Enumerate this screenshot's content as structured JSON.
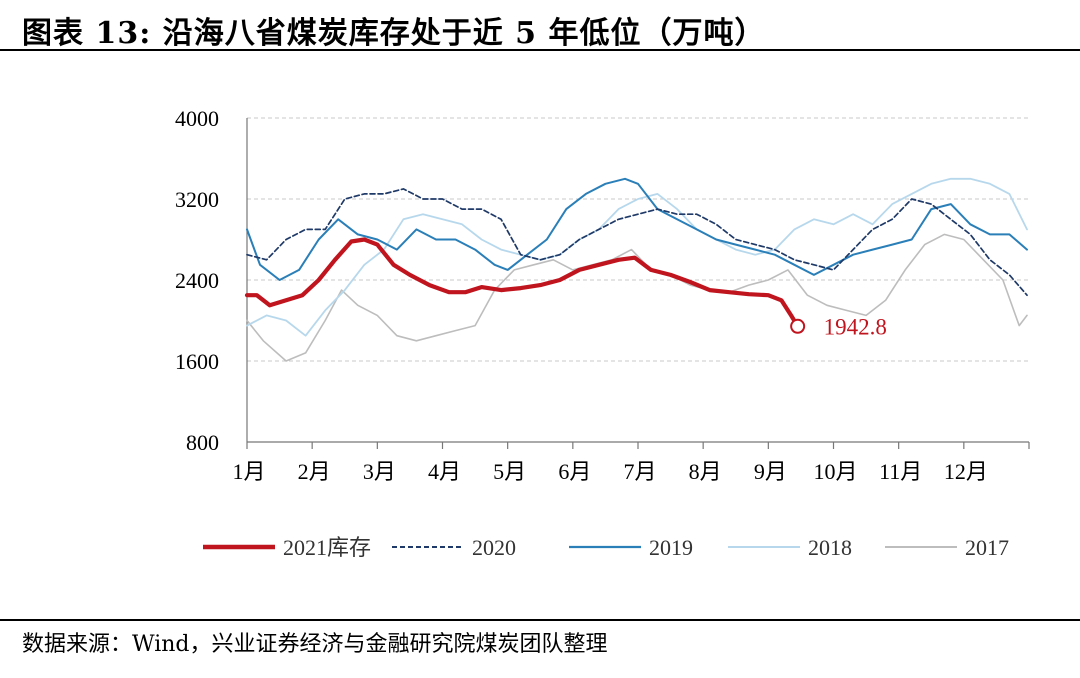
{
  "header": {
    "title": "图表 13:  沿海八省煤炭库存处于近 5 年低位（万吨）"
  },
  "footer": {
    "source": "数据来源：Wind，兴业证券经济与金融研究院煤炭团队整理"
  },
  "colors": {
    "y2021": "#c0141e",
    "y2020": "#1f3a68",
    "y2019": "#2a7fb8",
    "y2018": "#b7d8ec",
    "y2017": "#bdbdbd"
  },
  "chart_data": {
    "type": "line",
    "title": "",
    "xlabel": "",
    "ylabel": "",
    "ylim": [
      800,
      4000
    ],
    "yticks": [
      800,
      1600,
      2400,
      3200,
      4000
    ],
    "categories": [
      "1月",
      "2月",
      "3月",
      "4月",
      "5月",
      "6月",
      "7月",
      "8月",
      "9月",
      "10月",
      "11月",
      "12月"
    ],
    "grid": "horizontal-dashed",
    "legend_position": "bottom",
    "annotation": {
      "label": "1942.8",
      "month": 9.45,
      "value": 1942.8
    },
    "series": [
      {
        "name": "2017",
        "style": "solid",
        "x": [
          1.0,
          1.25,
          1.6,
          1.9,
          2.2,
          2.45,
          2.7,
          3.0,
          3.3,
          3.6,
          3.9,
          4.2,
          4.5,
          4.8,
          5.1,
          5.4,
          5.7,
          6.0,
          6.3,
          6.6,
          6.9,
          7.2,
          7.5,
          7.8,
          8.1,
          8.4,
          8.7,
          9.0,
          9.3,
          9.6,
          9.9,
          10.2,
          10.5,
          10.8,
          11.1,
          11.4,
          11.7,
          12.0,
          12.3,
          12.6,
          12.85,
          12.97
        ],
        "values": [
          2000,
          1800,
          1600,
          1680,
          2000,
          2300,
          2150,
          2050,
          1850,
          1800,
          1850,
          1900,
          1950,
          2300,
          2500,
          2550,
          2600,
          2500,
          2550,
          2600,
          2700,
          2500,
          2450,
          2350,
          2300,
          2280,
          2350,
          2400,
          2500,
          2250,
          2150,
          2100,
          2050,
          2200,
          2500,
          2750,
          2850,
          2800,
          2600,
          2400,
          1950,
          2050
        ]
      },
      {
        "name": "2018",
        "style": "solid",
        "x": [
          1.0,
          1.3,
          1.6,
          1.9,
          2.2,
          2.5,
          2.8,
          3.1,
          3.4,
          3.7,
          4.0,
          4.3,
          4.6,
          4.9,
          5.2,
          5.5,
          5.8,
          6.1,
          6.4,
          6.7,
          7.0,
          7.3,
          7.6,
          7.9,
          8.2,
          8.5,
          8.8,
          9.1,
          9.4,
          9.7,
          10.0,
          10.3,
          10.6,
          10.9,
          11.2,
          11.5,
          11.8,
          12.1,
          12.4,
          12.7,
          12.97
        ],
        "values": [
          1950,
          2050,
          2000,
          1850,
          2100,
          2300,
          2550,
          2700,
          3000,
          3050,
          3000,
          2950,
          2800,
          2700,
          2650,
          2600,
          2650,
          2800,
          2900,
          3100,
          3200,
          3250,
          3100,
          2900,
          2800,
          2700,
          2650,
          2700,
          2900,
          3000,
          2950,
          3050,
          2950,
          3150,
          3250,
          3350,
          3400,
          3400,
          3350,
          3250,
          2900
        ]
      },
      {
        "name": "2019",
        "style": "solid",
        "x": [
          1.0,
          1.2,
          1.5,
          1.8,
          2.1,
          2.4,
          2.7,
          3.0,
          3.3,
          3.6,
          3.9,
          4.2,
          4.5,
          4.8,
          5.0,
          5.3,
          5.6,
          5.9,
          6.2,
          6.5,
          6.8,
          7.0,
          7.3,
          7.6,
          7.9,
          8.2,
          8.5,
          8.8,
          9.1,
          9.4,
          9.7,
          10.0,
          10.3,
          10.6,
          10.9,
          11.2,
          11.5,
          11.8,
          12.1,
          12.4,
          12.7,
          12.97
        ],
        "values": [
          2900,
          2550,
          2400,
          2500,
          2800,
          3000,
          2850,
          2800,
          2700,
          2900,
          2800,
          2800,
          2700,
          2550,
          2500,
          2650,
          2800,
          3100,
          3250,
          3350,
          3400,
          3350,
          3100,
          3000,
          2900,
          2800,
          2750,
          2700,
          2650,
          2550,
          2450,
          2550,
          2650,
          2700,
          2750,
          2800,
          3100,
          3150,
          2950,
          2850,
          2850,
          2700
        ]
      },
      {
        "name": "2020",
        "style": "dashed",
        "x": [
          1.0,
          1.3,
          1.6,
          1.9,
          2.2,
          2.5,
          2.8,
          3.1,
          3.4,
          3.7,
          4.0,
          4.3,
          4.6,
          4.9,
          5.2,
          5.5,
          5.8,
          6.1,
          6.4,
          6.7,
          7.0,
          7.3,
          7.6,
          7.9,
          8.2,
          8.5,
          8.8,
          9.1,
          9.4,
          9.7,
          10.0,
          10.3,
          10.6,
          10.9,
          11.2,
          11.5,
          11.8,
          12.1,
          12.4,
          12.7,
          12.97
        ],
        "values": [
          2650,
          2600,
          2800,
          2900,
          2900,
          3200,
          3250,
          3250,
          3300,
          3200,
          3200,
          3100,
          3100,
          3000,
          2650,
          2600,
          2650,
          2800,
          2900,
          3000,
          3050,
          3100,
          3050,
          3050,
          2950,
          2800,
          2750,
          2700,
          2600,
          2550,
          2500,
          2700,
          2900,
          3000,
          3200,
          3150,
          3000,
          2850,
          2600,
          2450,
          2250
        ]
      },
      {
        "name": "2021库存",
        "style": "solid-thick",
        "x": [
          1.0,
          1.15,
          1.35,
          1.6,
          1.85,
          2.1,
          2.35,
          2.6,
          2.8,
          3.0,
          3.25,
          3.5,
          3.8,
          4.1,
          4.35,
          4.6,
          4.9,
          5.2,
          5.5,
          5.8,
          6.1,
          6.4,
          6.7,
          6.95,
          7.2,
          7.5,
          7.8,
          8.1,
          8.4,
          8.7,
          9.0,
          9.2,
          9.35,
          9.45
        ],
        "values": [
          2250,
          2250,
          2150,
          2200,
          2250,
          2400,
          2600,
          2780,
          2800,
          2750,
          2550,
          2450,
          2350,
          2280,
          2280,
          2330,
          2300,
          2320,
          2350,
          2400,
          2500,
          2550,
          2600,
          2620,
          2500,
          2450,
          2380,
          2300,
          2280,
          2260,
          2250,
          2200,
          2050,
          1942.8
        ]
      }
    ]
  },
  "legend": [
    {
      "key": "y2021",
      "label": "2021库存"
    },
    {
      "key": "y2020",
      "label": "2020"
    },
    {
      "key": "y2019",
      "label": "2019"
    },
    {
      "key": "y2018",
      "label": "2018"
    },
    {
      "key": "y2017",
      "label": "2017"
    }
  ]
}
